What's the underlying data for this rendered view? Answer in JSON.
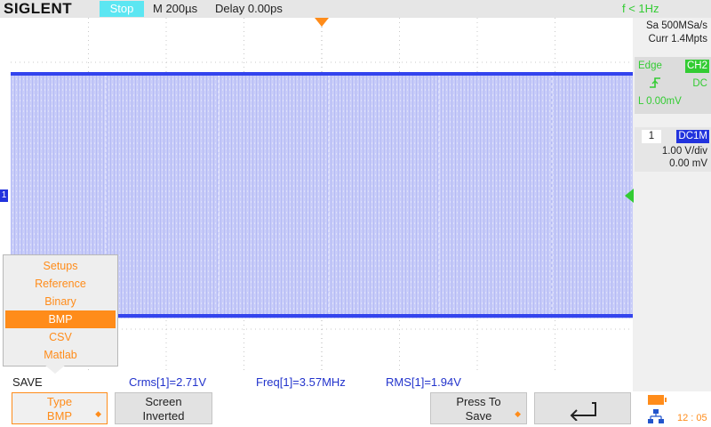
{
  "header": {
    "brand": "SIGLENT",
    "run_state": "Stop",
    "timebase": "M 200µs",
    "delay": "Delay 0.00ps",
    "trigger_freq": "f < 1Hz"
  },
  "acquisition": {
    "sample_rate": "Sa 500MSa/s",
    "memory": "Curr 1.4Mpts"
  },
  "trigger": {
    "type": "Edge",
    "source": "CH2",
    "slope_icon": "rising-edge-icon",
    "coupling": "DC",
    "level": "L  0.00mV"
  },
  "channel1": {
    "number": "1",
    "coupling": "DC1M",
    "scale": "1.00 V/div",
    "offset": "0.00 mV",
    "marker": "1"
  },
  "menu": {
    "items": [
      "Setups",
      "Reference",
      "Binary",
      "BMP",
      "CSV",
      "Matlab"
    ],
    "selected": "BMP"
  },
  "status": {
    "mode_label": "SAVE",
    "crms": "Crms[1]=2.71V",
    "freq": "Freq[1]=3.57MHz",
    "rms": "RMS[1]=1.94V"
  },
  "softkeys": {
    "type_line1": "Type",
    "type_line2": "BMP",
    "screen_line1": "Screen",
    "screen_line2": "Inverted",
    "press_line1": "Press To",
    "press_line2": "Save",
    "back_icon": "back-arrow-icon"
  },
  "system": {
    "clock": "12 : 05"
  },
  "colors": {
    "waveform": "#3344ee",
    "accent_orange": "#ff8c1a",
    "trigger_green": "#33cc33",
    "run_state_bg": "#5ce6f2"
  }
}
